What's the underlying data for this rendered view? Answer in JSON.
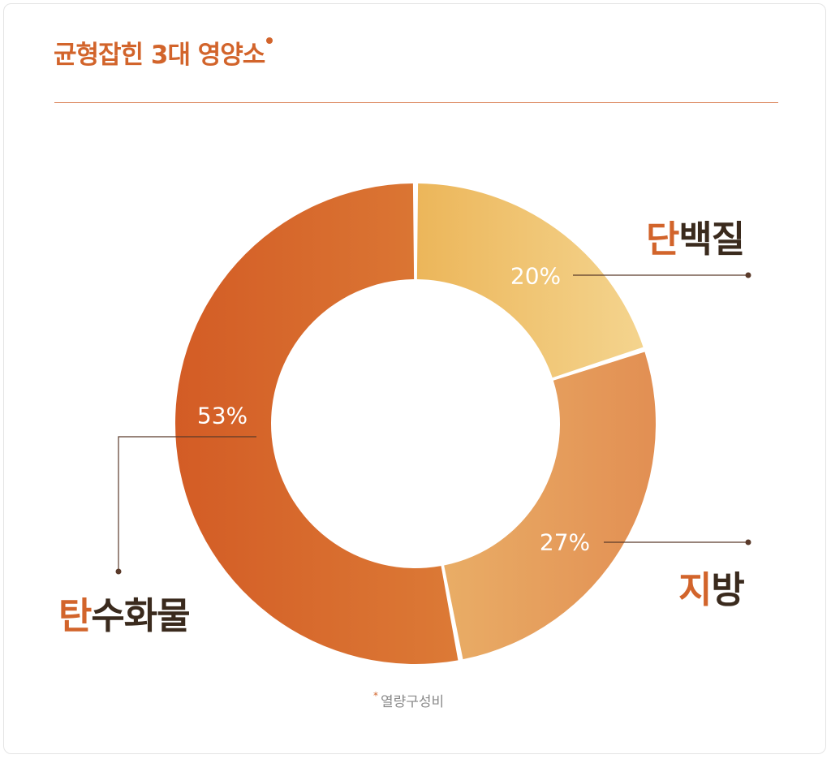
{
  "title": "균형잡힌 3대 영양소",
  "footnote": "열량구성비",
  "chart_data": {
    "type": "pie",
    "donut": true,
    "title": "균형잡힌 3대 영양소",
    "note": "열량구성비",
    "slices": [
      {
        "name": "단백질",
        "name_first": "단",
        "name_rest": "백질",
        "value": 20,
        "label": "20%",
        "color_start": "#ecb65a",
        "color_end": "#f4d48e"
      },
      {
        "name": "지방",
        "name_first": "지",
        "name_rest": "방",
        "value": 27,
        "label": "27%",
        "color_start": "#e9ad66",
        "color_end": "#e28f53"
      },
      {
        "name": "탄수화물",
        "name_first": "탄",
        "name_rest": "수화물",
        "value": 53,
        "label": "53%",
        "color_start": "#d35c25",
        "color_end": "#dc7a36"
      }
    ],
    "colors": {
      "accent": "#d2642b",
      "leader": "#5a3a2a",
      "label_dark": "#3a2a1d"
    }
  }
}
